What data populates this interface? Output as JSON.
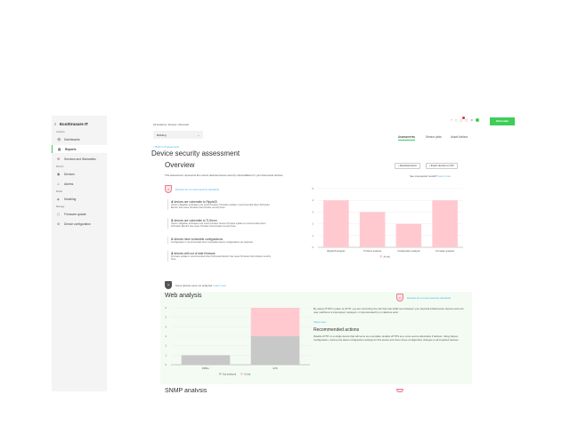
{
  "sidebar": {
    "logo": "EcoStruxure IT",
    "sections": [
      {
        "label": "Analysis",
        "items": [
          {
            "label": "Dashboards",
            "icon": "eye-icon"
          },
          {
            "label": "Reports",
            "icon": "report-icon",
            "active": true
          },
          {
            "label": "Services and Warranties",
            "icon": "wrench-icon"
          }
        ]
      },
      {
        "label": "Monitor",
        "items": [
          {
            "label": "Devices",
            "icon": "device-icon"
          },
          {
            "label": "Alarms",
            "icon": "alarm-icon"
          }
        ]
      },
      {
        "label": "Model",
        "items": [
          {
            "label": "Modeling",
            "icon": "model-icon"
          }
        ]
      },
      {
        "label": "Manage",
        "items": [
          {
            "label": "Firmware update",
            "icon": "firmware-icon"
          },
          {
            "label": "Device configuration",
            "icon": "config-icon"
          }
        ]
      }
    ]
  },
  "header": {
    "breadcrumb": [
      "All locations",
      "Europe",
      "Denmark"
    ],
    "location_select": "Building",
    "brand_button": "Schneider",
    "notification_count": "1",
    "tabs": [
      {
        "label": "Assessments",
        "active": true
      },
      {
        "label": "Sensor plots"
      },
      {
        "label": "Asset Advisor"
      }
    ]
  },
  "page": {
    "back_link": "< Back to Assessments",
    "title": "Device security assessment"
  },
  "overview": {
    "title": "Overview",
    "download_report": "Download report",
    "export_csv": "Export devices to CSV",
    "unexpected": "See unexpected results?",
    "learn_more": "Learn more",
    "description": "This assessment represents the current detected device security vulnerabilities for your discovered devices.",
    "status_count": "4",
    "status_text": "Devices do not meet security standards",
    "findings": [
      {
        "count": "4",
        "title": "devices are vulnerable to Ripple20",
        "detail": "Interim mitigation techniques are recommended. Firmware update is recommended when Schneider Electric has newer firmware that includes security fixes."
      },
      {
        "count": "3",
        "title": "devices are vulnerable to TLStorm",
        "detail": "Interim mitigation techniques are recommended. Device firmware update is recommended when Schneider Electric has newer firmware that includes security fixes."
      },
      {
        "count": "2",
        "title": "devices have vulnerable configurations",
        "detail": "Configuration is recommended when vulnerable device configurations are detected."
      },
      {
        "count": "4",
        "title": "devices with out of date firmware",
        "detail": "Firmware update is recommended when Schneider Electric has newer firmware that includes security fixes."
      }
    ],
    "not_analyzed": "Some devices were not analyzed.",
    "not_analyzed_link": "Learn more"
  },
  "web": {
    "title": "Web analysis",
    "status_count": "2",
    "status_text": "Devices do not meet security standards",
    "description": "By using HTTPS in place of HTTP, you are minimizing the risk that web traffic sent between your physical infrastructure devices and end user machines is intercepted, replayed, or impersonated by a malicious actor.",
    "show_more": "Show more",
    "actions_title": "Recommended actions",
    "actions_text": "Disable HTTP on a single device that will serve as a template. Enable HTTPS as a more secure alternative if desired. Using Device Configuration, retrieve the latest configuration settings for this device and clone these configuration changes to all impacted devices."
  },
  "snmp": {
    "title": "SNMP analysis"
  },
  "colors": {
    "accent": "#3dcd58",
    "at_risk": "#ffc9cf",
    "not_analyzed": "#c8c8c8",
    "link": "#42b4e6",
    "web_bg": "#f3fbf3"
  },
  "chart_data": [
    {
      "type": "bar",
      "categories": [
        "Ripple20 analysis",
        "TLStorm analysis",
        "Configuration analysis",
        "Firmware analysis"
      ],
      "series": [
        {
          "name": "At risk",
          "values": [
            4,
            3,
            2,
            4
          ]
        }
      ],
      "ylim": [
        0,
        5
      ],
      "yticks": [
        0,
        1,
        2,
        3,
        4,
        5
      ],
      "grid": true,
      "legend": "bottom"
    },
    {
      "type": "bar",
      "stacked": true,
      "categories": [
        "PM5LL",
        "UPS"
      ],
      "series": [
        {
          "name": "Not analyzed",
          "values": [
            1,
            3
          ]
        },
        {
          "name": "At risk",
          "values": [
            0,
            3
          ]
        }
      ],
      "ylim": [
        0,
        6
      ],
      "yticks": [
        0,
        1,
        2,
        3,
        4,
        5,
        6
      ],
      "grid": true,
      "legend": "bottom"
    }
  ]
}
